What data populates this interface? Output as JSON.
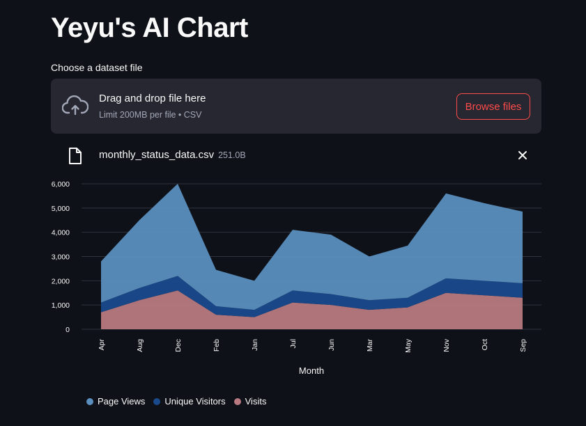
{
  "app": {
    "title": "Yeyu's AI Chart"
  },
  "uploader": {
    "label": "Choose a dataset file",
    "drop_text": "Drag and drop file here",
    "limit_text": "Limit 200MB per file • CSV",
    "browse_label": "Browse files"
  },
  "file": {
    "name": "monthly_status_data.csv",
    "size": "251.0B"
  },
  "colors": {
    "page_views": "#5b8fbf",
    "unique_visitors": "#1a4a8c",
    "visits": "#b87a80"
  },
  "chart_data": {
    "type": "area",
    "stacked": true,
    "xlabel": "Month",
    "ylabel": "",
    "ylim": [
      0,
      6000
    ],
    "yticks": [
      0,
      1000,
      2000,
      3000,
      4000,
      5000,
      6000
    ],
    "ytick_labels": [
      "0",
      "1,000",
      "2,000",
      "3,000",
      "4,000",
      "5,000",
      "6,000"
    ],
    "categories": [
      "Apr",
      "Aug",
      "Dec",
      "Feb",
      "Jan",
      "Jul",
      "Jun",
      "Mar",
      "May",
      "Nov",
      "Oct",
      "Sep"
    ],
    "series": [
      {
        "name": "Visits",
        "values": [
          700,
          1200,
          1600,
          600,
          500,
          1100,
          1000,
          800,
          900,
          1500,
          1400,
          1300
        ]
      },
      {
        "name": "Unique Visitors",
        "values": [
          400,
          500,
          600,
          350,
          300,
          500,
          450,
          400,
          400,
          600,
          600,
          600
        ]
      },
      {
        "name": "Page Views",
        "values": [
          1700,
          2800,
          3800,
          1500,
          1200,
          2500,
          2450,
          1800,
          2150,
          3500,
          3200,
          2950
        ]
      }
    ],
    "legend": [
      "Page Views",
      "Unique Visitors",
      "Visits"
    ],
    "legend_position": "bottom-left",
    "grid": true
  }
}
